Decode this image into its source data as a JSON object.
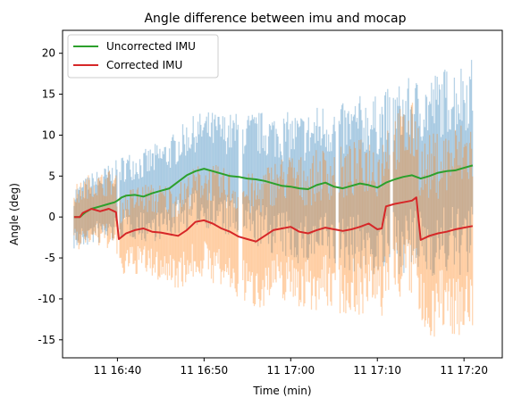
{
  "chart_data": {
    "type": "line",
    "title": "Angle difference between imu and mocap",
    "xlabel": "Time (min)",
    "ylabel": "Angle (deg)",
    "x_unit": "time",
    "xlim": [
      "16:33:40",
      "17:24:25"
    ],
    "ylim": [
      -17.2,
      22.8
    ],
    "x_ticks": [
      "11 16:40",
      "11 16:50",
      "11 17:00",
      "11 17:10",
      "11 17:20"
    ],
    "y_ticks": [
      -15,
      -10,
      -5,
      0,
      5,
      10,
      15,
      20
    ],
    "legend": {
      "position": "top-left",
      "entries": [
        "Uncorrected IMU",
        "Corrected IMU"
      ]
    },
    "grid": false,
    "colors": {
      "uncorrected": "#2ca02c",
      "corrected": "#d62728",
      "uncorrected_raw": "#1f77b4",
      "corrected_raw": "#ff7f0e"
    },
    "series": [
      {
        "name": "Uncorrected IMU",
        "x": [
          "16:35:00",
          "16:35:40",
          "16:36:00",
          "16:36:20",
          "16:37:00",
          "16:38:00",
          "16:39:00",
          "16:39:40",
          "16:40:00",
          "16:40:30",
          "16:41:00",
          "16:42:00",
          "16:43:00",
          "16:44:00",
          "16:45:00",
          "16:46:00",
          "16:47:00",
          "16:48:00",
          "16:49:00",
          "16:50:00",
          "16:51:00",
          "16:52:00",
          "16:53:00",
          "16:54:00",
          "16:55:00",
          "16:56:00",
          "16:57:00",
          "16:58:00",
          "16:59:00",
          "17:00:00",
          "17:01:00",
          "17:02:00",
          "17:03:00",
          "17:04:00",
          "17:05:00",
          "17:06:00",
          "17:07:00",
          "17:08:00",
          "17:09:00",
          "17:10:00",
          "17:11:00",
          "17:12:00",
          "17:13:00",
          "17:14:00",
          "17:15:00",
          "17:16:00",
          "17:17:00",
          "17:18:00",
          "17:19:00",
          "17:20:00",
          "17:21:00"
        ],
        "values": [
          0.0,
          0.0,
          0.3,
          0.6,
          1.0,
          1.3,
          1.6,
          1.8,
          2.0,
          2.4,
          2.6,
          2.7,
          2.5,
          2.9,
          3.2,
          3.5,
          4.3,
          5.1,
          5.6,
          5.9,
          5.6,
          5.3,
          5.0,
          4.9,
          4.7,
          4.6,
          4.4,
          4.1,
          3.8,
          3.7,
          3.5,
          3.4,
          3.9,
          4.2,
          3.7,
          3.5,
          3.8,
          4.1,
          3.9,
          3.6,
          4.2,
          4.6,
          4.9,
          5.1,
          4.7,
          5.0,
          5.4,
          5.6,
          5.7,
          6.0,
          6.3
        ]
      },
      {
        "name": "Corrected IMU",
        "x": [
          "16:35:00",
          "16:35:40",
          "16:36:00",
          "16:37:00",
          "16:38:00",
          "16:39:00",
          "16:39:50",
          "16:40:10",
          "16:41:00",
          "16:42:00",
          "16:43:00",
          "16:44:00",
          "16:45:00",
          "16:46:00",
          "16:47:00",
          "16:48:00",
          "16:49:00",
          "16:50:00",
          "16:51:00",
          "16:52:00",
          "16:53:00",
          "16:54:00",
          "16:55:00",
          "16:56:00",
          "16:57:00",
          "16:58:00",
          "16:59:00",
          "17:00:00",
          "17:01:00",
          "17:02:00",
          "17:03:00",
          "17:04:00",
          "17:05:00",
          "17:06:00",
          "17:07:00",
          "17:08:00",
          "17:09:00",
          "17:10:00",
          "17:10:30",
          "17:11:00",
          "17:12:00",
          "17:13:00",
          "17:14:00",
          "17:14:30",
          "17:15:00",
          "17:16:00",
          "17:17:00",
          "17:18:00",
          "17:19:00",
          "17:20:00",
          "17:21:00"
        ],
        "values": [
          0.0,
          0.0,
          0.5,
          1.0,
          0.7,
          1.0,
          0.6,
          -2.7,
          -2.0,
          -1.6,
          -1.4,
          -1.8,
          -1.9,
          -2.1,
          -2.3,
          -1.6,
          -0.6,
          -0.4,
          -0.8,
          -1.4,
          -1.8,
          -2.4,
          -2.7,
          -3.0,
          -2.3,
          -1.6,
          -1.4,
          -1.2,
          -1.8,
          -2.0,
          -1.6,
          -1.3,
          -1.5,
          -1.7,
          -1.5,
          -1.2,
          -0.8,
          -1.5,
          -1.4,
          1.3,
          1.6,
          1.8,
          2.0,
          2.4,
          -2.8,
          -2.3,
          -2.0,
          -1.8,
          -1.5,
          -1.3,
          -1.1
        ]
      }
    ]
  }
}
